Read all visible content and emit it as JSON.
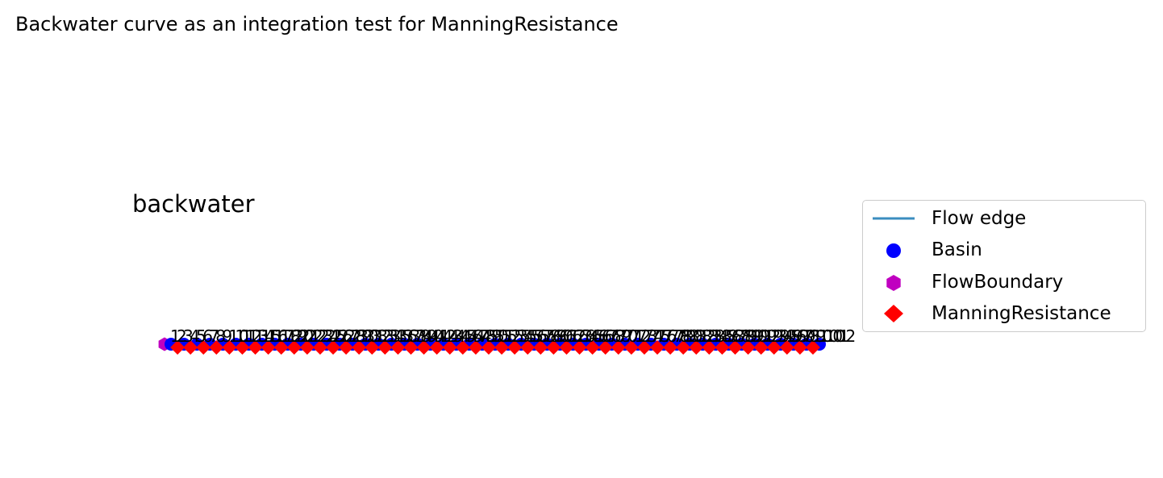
{
  "figure": {
    "suptitle": "Backwater curve as an integration test for ManningResistance",
    "axes_title": "backwater"
  },
  "colors": {
    "flow_edge": "#3b8dbf",
    "basin": "#0000ff",
    "flow_boundary": "#c000c0",
    "manning_resistance": "#ff0000"
  },
  "legend": {
    "placement": "right",
    "items": [
      {
        "label": "Flow edge",
        "marker": "line",
        "color": "#3b8dbf"
      },
      {
        "label": "Basin",
        "marker": "circle",
        "color": "#0000ff"
      },
      {
        "label": "FlowBoundary",
        "marker": "hexagon",
        "color": "#c000c0"
      },
      {
        "label": "ManningResistance",
        "marker": "diamond",
        "color": "#ff0000"
      }
    ]
  },
  "chart_data": {
    "type": "network",
    "title": "backwater",
    "grid": false,
    "axes_visible": false,
    "node_ids": [
      1,
      2,
      3,
      4,
      5,
      6,
      7,
      8,
      9,
      10,
      11,
      12,
      13,
      14,
      15,
      16,
      17,
      18,
      19,
      20,
      21,
      22,
      23,
      24,
      25,
      26,
      27,
      28,
      29,
      30,
      31,
      32,
      33,
      34,
      35,
      36,
      37,
      38,
      39,
      40,
      41,
      42,
      43,
      44,
      45,
      46,
      47,
      48,
      49,
      50,
      51,
      52,
      53,
      54,
      55,
      56,
      57,
      58,
      59,
      60,
      61,
      62,
      63,
      64,
      65,
      66,
      67,
      68,
      69,
      70,
      71,
      72,
      73,
      74,
      75,
      76,
      77,
      78,
      79,
      80,
      81,
      82,
      83,
      84,
      85,
      86,
      87,
      88,
      89,
      90,
      91,
      92,
      93,
      94,
      95,
      96,
      97,
      98,
      99,
      100,
      101,
      102
    ],
    "node_types": {
      "FlowBoundary": [
        1
      ],
      "Basin": [
        2,
        4,
        6,
        8,
        10,
        12,
        14,
        16,
        18,
        20,
        22,
        24,
        26,
        28,
        30,
        32,
        34,
        36,
        38,
        40,
        42,
        44,
        46,
        48,
        50,
        52,
        54,
        56,
        58,
        60,
        62,
        64,
        66,
        68,
        70,
        72,
        74,
        76,
        78,
        80,
        82,
        84,
        86,
        88,
        90,
        92,
        94,
        96,
        98,
        100,
        102
      ],
      "ManningResistance": [
        3,
        5,
        7,
        9,
        11,
        13,
        15,
        17,
        19,
        21,
        23,
        25,
        27,
        29,
        31,
        33,
        35,
        37,
        39,
        41,
        43,
        45,
        47,
        49,
        51,
        53,
        55,
        57,
        59,
        61,
        63,
        65,
        67,
        69,
        71,
        73,
        75,
        77,
        79,
        81,
        83,
        85,
        87,
        89,
        91,
        93,
        95,
        97,
        99,
        101
      ]
    },
    "edges": "sequential chain 1 → 2 → … → 102"
  }
}
